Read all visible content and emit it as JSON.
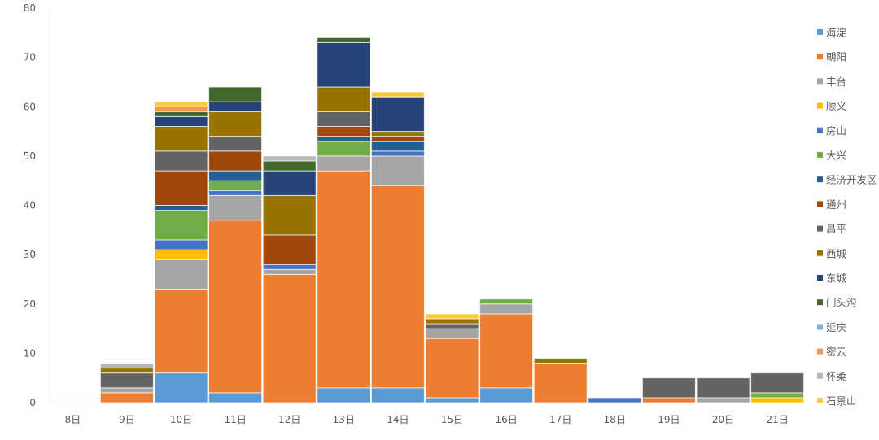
{
  "chart_data": {
    "type": "bar",
    "stacked": true,
    "title": "",
    "xlabel": "",
    "ylabel": "",
    "ylim": [
      0,
      80
    ],
    "yticks": [
      0,
      10,
      20,
      30,
      40,
      50,
      60,
      70,
      80
    ],
    "grid": false,
    "legend": "right",
    "categories": [
      "8日",
      "9日",
      "10日",
      "11日",
      "12日",
      "13日",
      "14日",
      "15日",
      "16日",
      "17日",
      "18日",
      "19日",
      "20日",
      "21日"
    ],
    "series": [
      {
        "name": "海淀",
        "color": "#5B9BD5",
        "values": [
          0,
          0,
          6,
          2,
          0,
          3,
          3,
          1,
          3,
          0,
          0,
          0,
          0,
          0
        ]
      },
      {
        "name": "朝阳",
        "color": "#ED7D31",
        "values": [
          0,
          2,
          17,
          35,
          26,
          44,
          41,
          12,
          15,
          8,
          0,
          1,
          0,
          0
        ]
      },
      {
        "name": "丰台",
        "color": "#A5A5A5",
        "values": [
          0,
          1,
          6,
          5,
          1,
          3,
          6,
          2,
          2,
          0,
          0,
          0,
          1,
          0
        ]
      },
      {
        "name": "顺义",
        "color": "#FFC000",
        "values": [
          0,
          0,
          2,
          0,
          0,
          0,
          0,
          0,
          0,
          0,
          0,
          0,
          0,
          1
        ]
      },
      {
        "name": "房山",
        "color": "#4472C4",
        "values": [
          0,
          0,
          2,
          1,
          1,
          0,
          1,
          0,
          0,
          0,
          1,
          0,
          0,
          0
        ]
      },
      {
        "name": "大兴",
        "color": "#70AD47",
        "values": [
          0,
          0,
          6,
          2,
          0,
          3,
          0,
          0,
          1,
          0,
          0,
          0,
          0,
          1
        ]
      },
      {
        "name": "经济开发区",
        "color": "#255E91",
        "values": [
          0,
          0,
          1,
          2,
          0,
          1,
          2,
          0,
          0,
          0,
          0,
          0,
          0,
          0
        ]
      },
      {
        "name": "通州",
        "color": "#9E480E",
        "values": [
          0,
          0,
          7,
          4,
          6,
          2,
          1,
          0,
          0,
          0,
          0,
          0,
          0,
          0
        ]
      },
      {
        "name": "昌平",
        "color": "#636363",
        "values": [
          0,
          3,
          4,
          3,
          0,
          3,
          0,
          1,
          0,
          0,
          0,
          4,
          4,
          4
        ]
      },
      {
        "name": "西城",
        "color": "#997300",
        "values": [
          0,
          1,
          5,
          5,
          8,
          5,
          1,
          1,
          0,
          1,
          0,
          0,
          0,
          0
        ]
      },
      {
        "name": "东城",
        "color": "#264478",
        "values": [
          0,
          0,
          2,
          2,
          5,
          9,
          7,
          0,
          0,
          0,
          0,
          0,
          0,
          0
        ]
      },
      {
        "name": "门头沟",
        "color": "#43682B",
        "values": [
          0,
          0,
          1,
          3,
          2,
          1,
          0,
          0,
          0,
          0,
          0,
          0,
          0,
          0
        ]
      },
      {
        "name": "延庆",
        "color": "#7CAFDD",
        "values": [
          0,
          0,
          0,
          0,
          0,
          0,
          0,
          0,
          0,
          0,
          0,
          0,
          0,
          0
        ]
      },
      {
        "name": "密云",
        "color": "#F1975A",
        "values": [
          0,
          0,
          1,
          0,
          0,
          0,
          0,
          0,
          0,
          0,
          0,
          0,
          0,
          0
        ]
      },
      {
        "name": "怀柔",
        "color": "#B7B7B7",
        "values": [
          0,
          1,
          0,
          0,
          1,
          0,
          0,
          0,
          0,
          0,
          0,
          0,
          0,
          0
        ]
      },
      {
        "name": "石景山",
        "color": "#FFCD33",
        "values": [
          0,
          0,
          1,
          0,
          0,
          0,
          1,
          1,
          0,
          0,
          0,
          0,
          0,
          0
        ]
      }
    ]
  }
}
